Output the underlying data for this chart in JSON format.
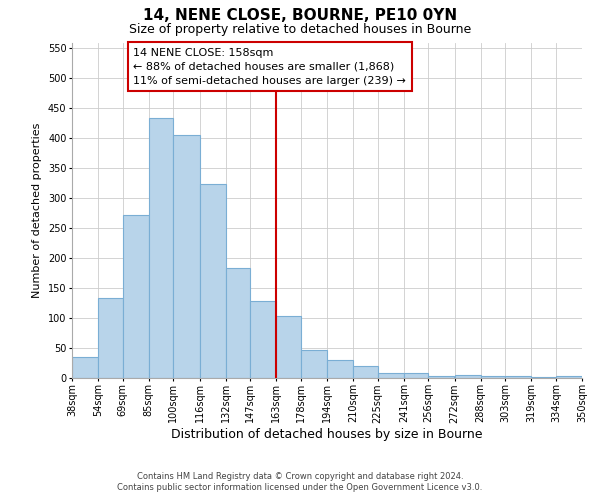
{
  "title": "14, NENE CLOSE, BOURNE, PE10 0YN",
  "subtitle": "Size of property relative to detached houses in Bourne",
  "xlabel": "Distribution of detached houses by size in Bourne",
  "ylabel": "Number of detached properties",
  "bar_edges": [
    38,
    54,
    69,
    85,
    100,
    116,
    132,
    147,
    163,
    178,
    194,
    210,
    225,
    241,
    256,
    272,
    288,
    303,
    319,
    334,
    350
  ],
  "bar_heights": [
    35,
    133,
    272,
    433,
    405,
    323,
    183,
    128,
    103,
    46,
    30,
    20,
    8,
    8,
    2,
    5,
    2,
    2,
    1,
    2
  ],
  "bar_color": "#b8d4ea",
  "bar_edge_color": "#7aaed4",
  "reference_line_x": 163,
  "reference_line_color": "#cc0000",
  "ylim": [
    0,
    560
  ],
  "yticks": [
    0,
    50,
    100,
    150,
    200,
    250,
    300,
    350,
    400,
    450,
    500,
    550
  ],
  "annotation_title": "14 NENE CLOSE: 158sqm",
  "annotation_line1": "← 88% of detached houses are smaller (1,868)",
  "annotation_line2": "11% of semi-detached houses are larger (239) →",
  "annotation_box_color": "#ffffff",
  "annotation_box_edge": "#cc0000",
  "footer_line1": "Contains HM Land Registry data © Crown copyright and database right 2024.",
  "footer_line2": "Contains public sector information licensed under the Open Government Licence v3.0.",
  "tick_labels": [
    "38sqm",
    "54sqm",
    "69sqm",
    "85sqm",
    "100sqm",
    "116sqm",
    "132sqm",
    "147sqm",
    "163sqm",
    "178sqm",
    "194sqm",
    "210sqm",
    "225sqm",
    "241sqm",
    "256sqm",
    "272sqm",
    "288sqm",
    "303sqm",
    "319sqm",
    "334sqm",
    "350sqm"
  ],
  "background_color": "#ffffff",
  "grid_color": "#cccccc",
  "title_fontsize": 11,
  "subtitle_fontsize": 9,
  "xlabel_fontsize": 9,
  "ylabel_fontsize": 8,
  "tick_fontsize": 7,
  "annotation_fontsize": 8,
  "footer_fontsize": 6
}
